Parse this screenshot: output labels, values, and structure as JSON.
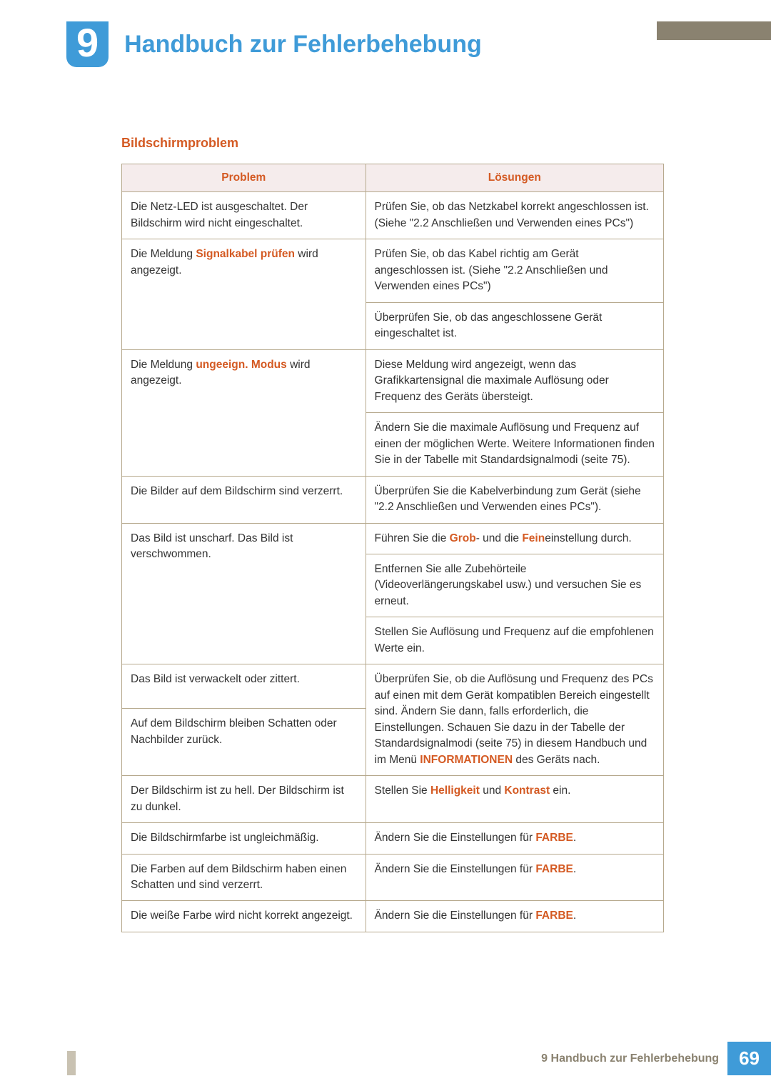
{
  "header": {
    "chapter_number": "9",
    "chapter_title": "Handbuch zur Fehlerbehebung"
  },
  "section": {
    "title": "Bildschirmproblem"
  },
  "table": {
    "col_header_problem": "Problem",
    "col_header_solution": "Lösungen",
    "header_bg_color": "#f5ecec",
    "border_color": "#b6a98d",
    "highlight_color": "#d45a23",
    "body_fontsize": 15.5,
    "rows": [
      {
        "problem_parts": [
          "Die Netz-LED ist ausgeschaltet. Der Bildschirm wird nicht eingeschaltet."
        ],
        "solutions": [
          {
            "parts": [
              "Prüfen Sie, ob das Netzkabel korrekt angeschlossen ist. (Siehe \"2.2 Anschließen und Verwenden eines PCs\")"
            ]
          }
        ]
      },
      {
        "problem_parts": [
          "Die Meldung ",
          {
            "hl": "Signalkabel prüfen"
          },
          " wird angezeigt."
        ],
        "solutions": [
          {
            "parts": [
              "Prüfen Sie, ob das Kabel richtig am Gerät angeschlossen ist. (Siehe \"2.2 Anschließen und Verwenden eines PCs\")"
            ]
          },
          {
            "parts": [
              "Überprüfen Sie, ob das angeschlossene Gerät eingeschaltet ist."
            ]
          }
        ]
      },
      {
        "problem_parts": [
          "Die Meldung ",
          {
            "hl": "ungeeign. Modus"
          },
          " wird angezeigt."
        ],
        "solutions": [
          {
            "parts": [
              "Diese Meldung wird angezeigt, wenn das Grafikkartensignal die maximale Auflösung oder Frequenz des Geräts übersteigt."
            ]
          },
          {
            "parts": [
              "Ändern Sie die maximale Auflösung und Frequenz auf einen der möglichen Werte. Weitere Informationen finden Sie in der Tabelle mit Standardsignalmodi (seite 75)."
            ]
          }
        ]
      },
      {
        "problem_parts": [
          "Die Bilder auf dem Bildschirm sind verzerrt."
        ],
        "solutions": [
          {
            "parts": [
              "Überprüfen Sie die Kabelverbindung zum Gerät (siehe \"2.2 Anschließen und Verwenden eines PCs\")."
            ]
          }
        ]
      },
      {
        "problem_parts": [
          "Das Bild ist unscharf. Das Bild ist verschwommen."
        ],
        "solutions": [
          {
            "parts": [
              "Führen Sie die ",
              {
                "hl": "Grob"
              },
              "- und die ",
              {
                "hl": "Fein"
              },
              "einstellung durch."
            ]
          },
          {
            "parts": [
              "Entfernen Sie alle Zubehörteile (Videoverlängerungskabel usw.) und versuchen Sie es erneut."
            ]
          },
          {
            "parts": [
              "Stellen Sie Auflösung und Frequenz auf die empfohlenen Werte ein."
            ]
          }
        ]
      },
      {
        "problem_parts": [
          "Das Bild ist verwackelt oder zittert."
        ],
        "solutions": [
          {
            "parts": [
              "Überprüfen Sie, ob die Auflösung und Frequenz des PCs auf einen mit dem Gerät kompatiblen Bereich eingestellt sind. Ändern Sie dann, falls erforderlich, die Einstellungen. Schauen Sie dazu in der Tabelle der Standardsignalmodi (seite 75) in diesem Handbuch und im Menü ",
              {
                "hl": "INFORMATIONEN"
              },
              " des Geräts nach."
            ],
            "merged_rowspan": 2
          }
        ]
      },
      {
        "problem_parts": [
          "Auf dem Bildschirm bleiben Schatten oder Nachbilder zurück."
        ],
        "solutions": []
      },
      {
        "problem_parts": [
          "Der Bildschirm ist zu hell. Der Bildschirm ist zu dunkel."
        ],
        "solutions": [
          {
            "parts": [
              "Stellen Sie ",
              {
                "hl": "Helligkeit"
              },
              " und ",
              {
                "hl": "Kontrast"
              },
              " ein."
            ]
          }
        ]
      },
      {
        "problem_parts": [
          "Die Bildschirmfarbe ist ungleichmäßig."
        ],
        "solutions": [
          {
            "parts": [
              "Ändern Sie die Einstellungen für ",
              {
                "hl": "FARBE"
              },
              "."
            ]
          }
        ]
      },
      {
        "problem_parts": [
          "Die Farben auf dem Bildschirm haben einen Schatten und sind verzerrt."
        ],
        "solutions": [
          {
            "parts": [
              "Ändern Sie die Einstellungen für ",
              {
                "hl": "FARBE"
              },
              "."
            ]
          }
        ]
      },
      {
        "problem_parts": [
          "Die weiße Farbe wird nicht korrekt angezeigt."
        ],
        "solutions": [
          {
            "parts": [
              "Ändern Sie die Einstellungen für ",
              {
                "hl": "FARBE"
              },
              "."
            ]
          }
        ]
      }
    ]
  },
  "footer": {
    "text": "9 Handbuch zur Fehlerbehebung",
    "page": "69"
  },
  "colors": {
    "accent_blue": "#3f9bd8",
    "accent_orange": "#d45a23",
    "top_band": "#8a8270",
    "side_stripe": "#c9c2b2"
  }
}
